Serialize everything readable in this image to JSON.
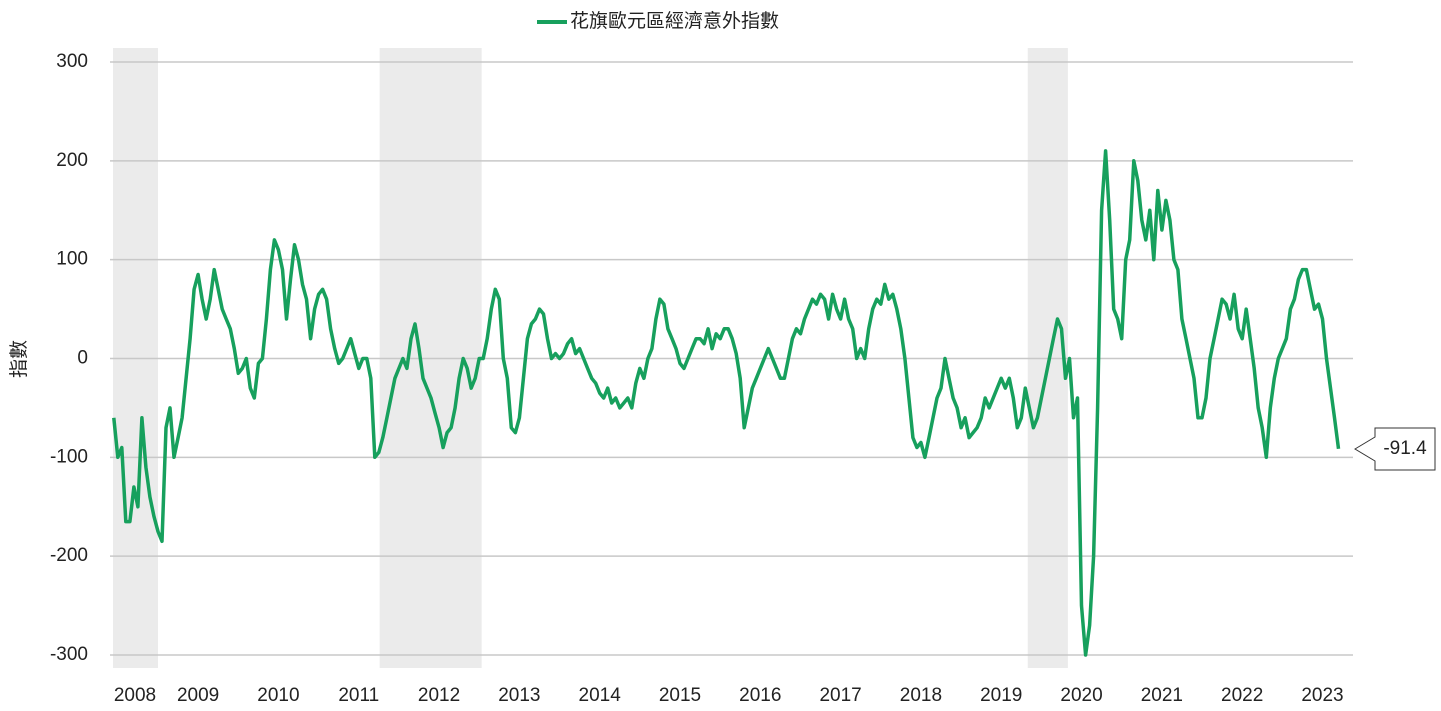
{
  "chart_data": {
    "type": "line",
    "legend": "花旗歐元區經濟意外指數",
    "ylabel": "指數",
    "last_value_label": "-91.4",
    "xlim": [
      2007.94,
      2023.38
    ],
    "xticks": [
      2008,
      2009,
      2010,
      2011,
      2012,
      2013,
      2014,
      2015,
      2016,
      2017,
      2018,
      2019,
      2020,
      2021,
      2022,
      2023
    ],
    "ylim": [
      -300,
      300
    ],
    "yticks": [
      -300,
      -200,
      -100,
      0,
      100,
      200,
      300
    ],
    "grid": true,
    "shaded_periods": [
      [
        2007.94,
        2008.5
      ],
      [
        2011.26,
        2012.53
      ],
      [
        2019.33,
        2019.83
      ]
    ],
    "x": [
      2007.95,
      2008,
      2008.05,
      2008.1,
      2008.15,
      2008.2,
      2008.25,
      2008.3,
      2008.35,
      2008.4,
      2008.45,
      2008.5,
      2008.55,
      2008.6,
      2008.65,
      2008.7,
      2008.75,
      2008.8,
      2008.85,
      2008.9,
      2008.95,
      2009,
      2009.05,
      2009.1,
      2009.15,
      2009.2,
      2009.25,
      2009.3,
      2009.35,
      2009.4,
      2009.45,
      2009.5,
      2009.55,
      2009.6,
      2009.65,
      2009.7,
      2009.75,
      2009.8,
      2009.85,
      2009.9,
      2009.95,
      2010,
      2010.05,
      2010.1,
      2010.15,
      2010.2,
      2010.25,
      2010.3,
      2010.35,
      2010.4,
      2010.45,
      2010.5,
      2010.55,
      2010.6,
      2010.65,
      2010.7,
      2010.75,
      2010.8,
      2010.85,
      2010.9,
      2010.95,
      2011,
      2011.05,
      2011.1,
      2011.15,
      2011.2,
      2011.25,
      2011.3,
      2011.35,
      2011.4,
      2011.45,
      2011.5,
      2011.55,
      2011.6,
      2011.65,
      2011.7,
      2011.75,
      2011.8,
      2011.85,
      2011.9,
      2011.95,
      2012,
      2012.05,
      2012.1,
      2012.15,
      2012.2,
      2012.25,
      2012.3,
      2012.35,
      2012.4,
      2012.45,
      2012.5,
      2012.55,
      2012.6,
      2012.65,
      2012.7,
      2012.75,
      2012.8,
      2012.85,
      2012.9,
      2012.95,
      2013,
      2013.05,
      2013.1,
      2013.15,
      2013.2,
      2013.25,
      2013.3,
      2013.35,
      2013.4,
      2013.45,
      2013.5,
      2013.55,
      2013.6,
      2013.65,
      2013.7,
      2013.75,
      2013.8,
      2013.85,
      2013.9,
      2013.95,
      2014,
      2014.05,
      2014.1,
      2014.15,
      2014.2,
      2014.25,
      2014.3,
      2014.35,
      2014.4,
      2014.45,
      2014.5,
      2014.55,
      2014.6,
      2014.65,
      2014.7,
      2014.75,
      2014.8,
      2014.85,
      2014.9,
      2014.95,
      2015,
      2015.05,
      2015.1,
      2015.15,
      2015.2,
      2015.25,
      2015.3,
      2015.35,
      2015.4,
      2015.45,
      2015.5,
      2015.55,
      2015.6,
      2015.65,
      2015.7,
      2015.75,
      2015.8,
      2015.85,
      2015.9,
      2015.95,
      2016,
      2016.05,
      2016.1,
      2016.15,
      2016.2,
      2016.25,
      2016.3,
      2016.35,
      2016.4,
      2016.45,
      2016.5,
      2016.55,
      2016.6,
      2016.65,
      2016.7,
      2016.75,
      2016.8,
      2016.85,
      2016.9,
      2016.95,
      2017,
      2017.05,
      2017.1,
      2017.15,
      2017.2,
      2017.25,
      2017.3,
      2017.35,
      2017.4,
      2017.45,
      2017.5,
      2017.55,
      2017.6,
      2017.65,
      2017.7,
      2017.75,
      2017.8,
      2017.85,
      2017.9,
      2017.95,
      2018,
      2018.05,
      2018.1,
      2018.15,
      2018.2,
      2018.25,
      2018.3,
      2018.35,
      2018.4,
      2018.45,
      2018.5,
      2018.55,
      2018.6,
      2018.65,
      2018.7,
      2018.75,
      2018.8,
      2018.85,
      2018.9,
      2018.95,
      2019,
      2019.05,
      2019.1,
      2019.15,
      2019.2,
      2019.25,
      2019.3,
      2019.35,
      2019.4,
      2019.45,
      2019.5,
      2019.55,
      2019.6,
      2019.65,
      2019.7,
      2019.75,
      2019.8,
      2019.85,
      2019.9,
      2019.95,
      2020,
      2020.05,
      2020.1,
      2020.15,
      2020.2,
      2020.25,
      2020.3,
      2020.35,
      2020.4,
      2020.45,
      2020.5,
      2020.55,
      2020.6,
      2020.65,
      2020.7,
      2020.75,
      2020.8,
      2020.85,
      2020.9,
      2020.95,
      2021,
      2021.05,
      2021.1,
      2021.15,
      2021.2,
      2021.25,
      2021.3,
      2021.35,
      2021.4,
      2021.45,
      2021.5,
      2021.55,
      2021.6,
      2021.65,
      2021.7,
      2021.75,
      2021.8,
      2021.85,
      2021.9,
      2021.95,
      2022,
      2022.05,
      2022.1,
      2022.15,
      2022.2,
      2022.25,
      2022.3,
      2022.35,
      2022.4,
      2022.45,
      2022.5,
      2022.55,
      2022.6,
      2022.65,
      2022.7,
      2022.75,
      2022.8,
      2022.85,
      2022.9,
      2022.95,
      2023,
      2023.05,
      2023.1,
      2023.15,
      2023.2
    ],
    "series": [
      {
        "name": "花旗歐元區經濟意外指數",
        "color": "#17a05d",
        "values": [
          -60,
          -100,
          -90,
          -165,
          -165,
          -130,
          -150,
          -60,
          -110,
          -140,
          -160,
          -175,
          -185,
          -70,
          -50,
          -100,
          -80,
          -60,
          -20,
          20,
          70,
          85,
          60,
          40,
          60,
          90,
          70,
          50,
          40,
          30,
          10,
          -15,
          -10,
          0,
          -30,
          -40,
          -5,
          0,
          40,
          90,
          120,
          110,
          90,
          40,
          80,
          115,
          100,
          75,
          60,
          20,
          50,
          65,
          70,
          60,
          30,
          10,
          -5,
          0,
          10,
          20,
          5,
          -10,
          0,
          0,
          -20,
          -100,
          -95,
          -80,
          -60,
          -40,
          -20,
          -10,
          0,
          -10,
          20,
          35,
          10,
          -20,
          -30,
          -40,
          -55,
          -70,
          -90,
          -75,
          -70,
          -50,
          -20,
          0,
          -10,
          -30,
          -20,
          0,
          0,
          20,
          50,
          70,
          60,
          0,
          -20,
          -70,
          -75,
          -60,
          -20,
          20,
          35,
          40,
          50,
          45,
          20,
          0,
          5,
          0,
          5,
          15,
          20,
          5,
          10,
          0,
          -10,
          -20,
          -25,
          -35,
          -40,
          -30,
          -45,
          -40,
          -50,
          -45,
          -40,
          -50,
          -25,
          -10,
          -20,
          0,
          10,
          40,
          60,
          55,
          30,
          20,
          10,
          -5,
          -10,
          0,
          10,
          20,
          20,
          15,
          30,
          10,
          25,
          20,
          30,
          30,
          20,
          5,
          -20,
          -70,
          -50,
          -30,
          -20,
          -10,
          0,
          10,
          0,
          -10,
          -20,
          -20,
          0,
          20,
          30,
          25,
          40,
          50,
          60,
          55,
          65,
          60,
          40,
          65,
          50,
          40,
          60,
          40,
          30,
          0,
          10,
          0,
          30,
          50,
          60,
          55,
          75,
          60,
          65,
          50,
          30,
          0,
          -40,
          -80,
          -90,
          -85,
          -100,
          -80,
          -60,
          -40,
          -30,
          0,
          -20,
          -40,
          -50,
          -70,
          -60,
          -80,
          -75,
          -70,
          -60,
          -40,
          -50,
          -40,
          -30,
          -20,
          -30,
          -20,
          -40,
          -70,
          -60,
          -30,
          -50,
          -70,
          -60,
          -40,
          -20,
          0,
          20,
          40,
          30,
          -20,
          0,
          -60,
          -40,
          -250,
          -300,
          -270,
          -200,
          -50,
          150,
          210,
          140,
          50,
          40,
          20,
          100,
          120,
          200,
          180,
          140,
          120,
          150,
          100,
          170,
          130,
          160,
          140,
          100,
          90,
          40,
          20,
          0,
          -20,
          -60,
          -60,
          -40,
          0,
          20,
          40,
          60,
          55,
          40,
          65,
          30,
          20,
          50,
          20,
          -10,
          -50,
          -70,
          -100,
          -50,
          -20,
          0,
          10,
          20,
          50,
          60,
          80,
          90,
          90,
          70,
          50,
          55,
          40,
          0,
          -30,
          -60,
          -91.4
        ]
      }
    ]
  }
}
